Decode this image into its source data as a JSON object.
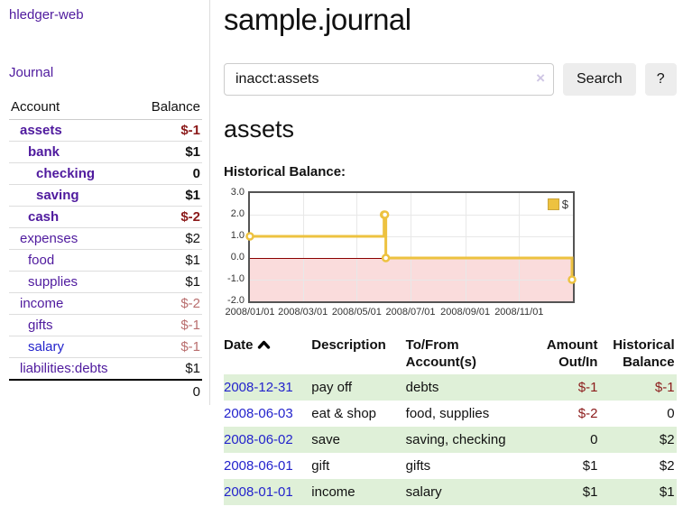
{
  "app": {
    "title": "hledger-web"
  },
  "sidebar": {
    "journal_link": "Journal",
    "headers": {
      "account": "Account",
      "balance": "Balance"
    },
    "accounts": [
      {
        "name": "assets",
        "depth": 1,
        "bold": true,
        "link_color": "purple",
        "balance": "$-1",
        "negative": true
      },
      {
        "name": "bank",
        "depth": 2,
        "bold": true,
        "link_color": "purple",
        "balance": "$1",
        "negative": false
      },
      {
        "name": "checking",
        "depth": 3,
        "bold": true,
        "link_color": "purple",
        "balance": "0",
        "negative": false
      },
      {
        "name": "saving",
        "depth": 3,
        "bold": true,
        "link_color": "purple",
        "balance": "$1",
        "negative": false
      },
      {
        "name": "cash",
        "depth": 2,
        "bold": true,
        "link_color": "purple",
        "balance": "$-2",
        "negative": true
      },
      {
        "name": "expenses",
        "depth": 1,
        "bold": false,
        "link_color": "purple",
        "balance": "$2",
        "negative": false
      },
      {
        "name": "food",
        "depth": 2,
        "bold": false,
        "link_color": "purple",
        "balance": "$1",
        "negative": false
      },
      {
        "name": "supplies",
        "depth": 2,
        "bold": false,
        "link_color": "purple",
        "balance": "$1",
        "negative": false
      },
      {
        "name": "income",
        "depth": 1,
        "bold": false,
        "link_color": "purple",
        "balance": "$-2",
        "negative": true
      },
      {
        "name": "gifts",
        "depth": 2,
        "bold": false,
        "link_color": "purple",
        "balance": "$-1",
        "negative": true
      },
      {
        "name": "salary",
        "depth": 2,
        "bold": false,
        "link_color": "blue",
        "balance": "$-1",
        "negative": true
      },
      {
        "name": "liabilities:debts",
        "depth": 1,
        "bold": false,
        "link_color": "purple",
        "balance": "$1",
        "negative": false
      }
    ],
    "total": "0"
  },
  "header": {
    "title": "sample.journal"
  },
  "search": {
    "value": "inacct:assets",
    "clear_icon": "×",
    "button_label": "Search",
    "help_label": "?"
  },
  "main": {
    "account_heading": "assets",
    "chart_label": "Historical Balance:"
  },
  "chart_data": {
    "type": "line",
    "title": "Historical Balance:",
    "step": true,
    "series": [
      {
        "name": "$",
        "points": [
          [
            "2008-01-01",
            1
          ],
          [
            "2008-06-01",
            2
          ],
          [
            "2008-06-02",
            2
          ],
          [
            "2008-06-03",
            0
          ],
          [
            "2008-12-31",
            -1
          ]
        ]
      }
    ],
    "x_ticks": [
      "2008/01/01",
      "2008/03/01",
      "2008/05/01",
      "2008/07/01",
      "2008/09/01",
      "2008/11/01"
    ],
    "y_ticks": [
      "3.0",
      "2.0",
      "1.0",
      "0.0",
      "-1.0",
      "-2.0"
    ],
    "ylim": [
      -2,
      3
    ],
    "xlim": [
      "2008-01-01",
      "2008-12-31"
    ],
    "grid": true,
    "legend_position": "top-right",
    "line_color": "#edc240",
    "negative_region_color": "#fadcdc",
    "zero_line_color": "#8b0000"
  },
  "register": {
    "headers": [
      {
        "line1": "Date",
        "line2": "",
        "align": "left",
        "sorted": true
      },
      {
        "line1": "Description",
        "line2": "",
        "align": "left",
        "sorted": false
      },
      {
        "line1": "To/From",
        "line2": "Account(s)",
        "align": "left",
        "sorted": false
      },
      {
        "line1": "Amount",
        "line2": "Out/In",
        "align": "right",
        "sorted": false
      },
      {
        "line1": "Historical",
        "line2": "Balance",
        "align": "right",
        "sorted": false
      }
    ],
    "rows": [
      {
        "date": "2008-12-31",
        "description": "pay off",
        "accounts": "debts",
        "amount": "$-1",
        "amount_negative": true,
        "balance": "$-1",
        "balance_negative": true
      },
      {
        "date": "2008-06-03",
        "description": "eat & shop",
        "accounts": "food, supplies",
        "amount": "$-2",
        "amount_negative": true,
        "balance": "0",
        "balance_negative": false
      },
      {
        "date": "2008-06-02",
        "description": "save",
        "accounts": "saving, checking",
        "amount": "0",
        "amount_negative": false,
        "balance": "$2",
        "balance_negative": false
      },
      {
        "date": "2008-06-01",
        "description": "gift",
        "accounts": "gifts",
        "amount": "$1",
        "amount_negative": false,
        "balance": "$2",
        "balance_negative": false
      },
      {
        "date": "2008-01-01",
        "description": "income",
        "accounts": "salary",
        "amount": "$1",
        "amount_negative": false,
        "balance": "$1",
        "balance_negative": false
      }
    ]
  },
  "colors": {
    "link_purple": "#4f1a9e",
    "link_blue": "#2323cc",
    "negative_bold": "#8b1a1a",
    "negative_soft": "#b96e6e",
    "stripe_green": "#dff0d8",
    "chart_line": "#edc240",
    "chart_border": "#545454"
  }
}
